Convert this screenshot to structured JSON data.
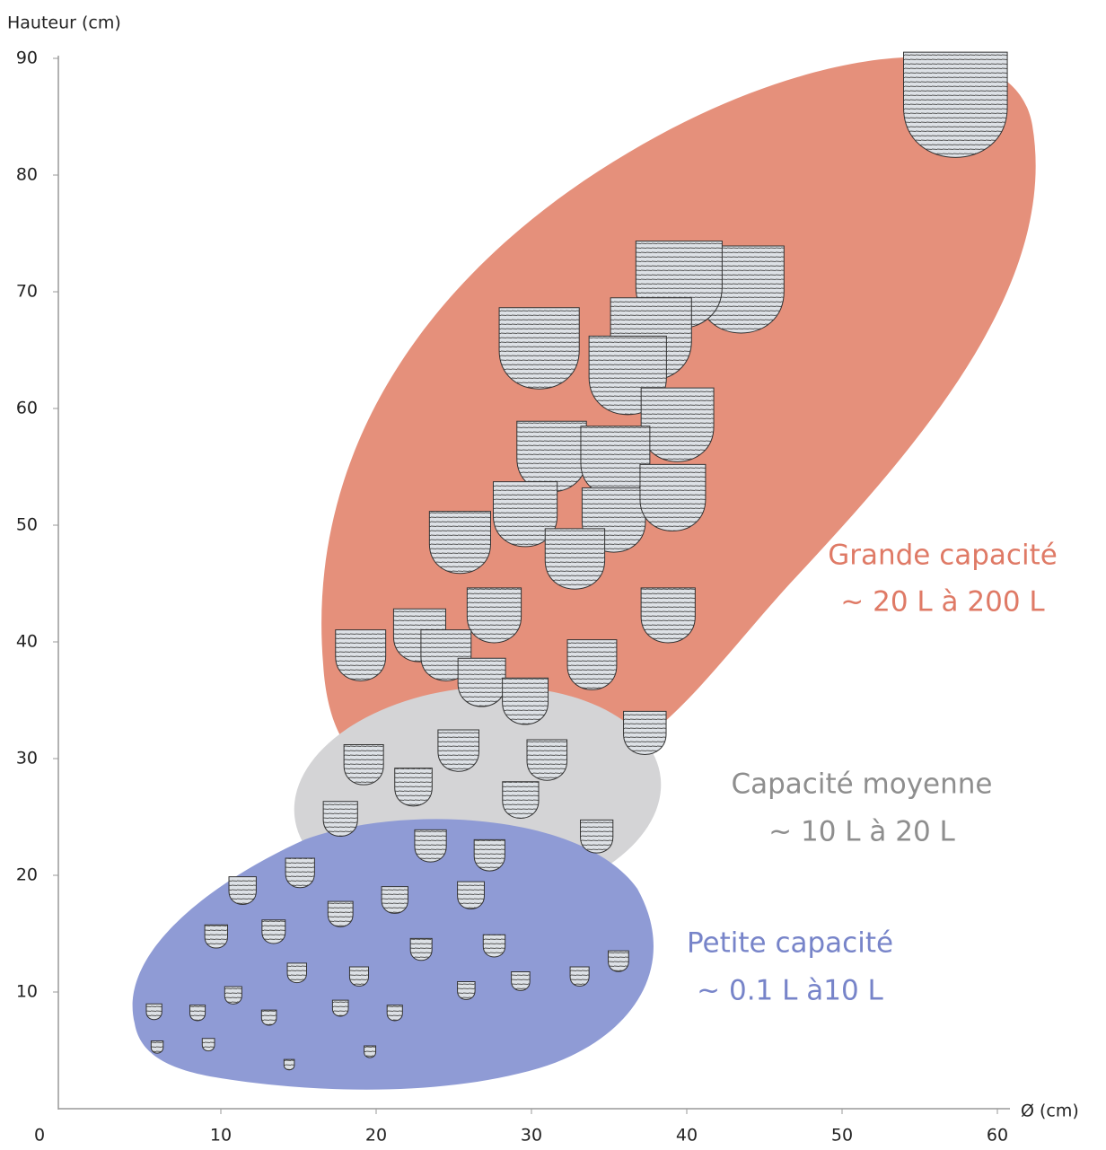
{
  "chart_data": {
    "type": "scatter",
    "xlabel": "Ø (cm)",
    "ylabel": "Hauteur (cm)",
    "xlim": [
      0,
      60
    ],
    "ylim": [
      0,
      90
    ],
    "xticks": [
      0,
      10,
      20,
      30,
      40,
      50,
      60
    ],
    "yticks": [
      10,
      20,
      30,
      40,
      50,
      60,
      70,
      80,
      90
    ],
    "x": [
      57.3,
      43.5,
      39.5,
      30.5,
      37.7,
      36.2,
      39.4,
      31.3,
      35.4,
      29.6,
      25.4,
      35.3,
      39.1,
      32.8,
      38.8,
      27.6,
      22.8,
      19.0,
      33.9,
      24.5,
      26.8,
      29.6,
      37.3,
      19.2,
      25.3,
      31.0,
      22.4,
      29.3,
      17.7,
      34.2,
      23.5,
      27.3,
      15.1,
      11.4,
      26.1,
      21.2,
      17.7,
      13.4,
      9.7,
      27.6,
      35.6,
      22.9,
      33.1,
      29.3,
      25.8,
      18.9,
      14.9,
      10.8,
      8.5,
      13.1,
      17.7,
      21.2,
      5.7,
      5.9,
      9.2,
      19.6,
      14.4
    ],
    "values": [
      85.3,
      69.6,
      70.0,
      64.6,
      65.4,
      62.3,
      58.1,
      55.4,
      55.0,
      50.5,
      48.1,
      50.0,
      51.9,
      46.7,
      41.9,
      41.9,
      40.2,
      38.5,
      37.7,
      38.5,
      36.2,
      34.6,
      31.9,
      29.2,
      30.4,
      29.6,
      27.3,
      26.2,
      24.6,
      23.1,
      22.3,
      21.5,
      20.0,
      18.5,
      18.1,
      17.7,
      16.5,
      15.0,
      14.6,
      13.8,
      12.5,
      13.5,
      11.2,
      10.8,
      10.0,
      11.2,
      11.5,
      9.6,
      8.1,
      7.7,
      8.5,
      8.1,
      8.2,
      5.2,
      5.4,
      4.8,
      3.7
    ],
    "annotations": [
      {
        "lines": [
          "Grande capacité",
          "~ 20 L à 200 L"
        ],
        "color": "#df7a66"
      },
      {
        "lines": [
          "Capacité moyenne",
          "~ 10 L à 20 L"
        ],
        "color": "#8e8e8e"
      },
      {
        "lines": [
          "Petite capacité",
          "~ 0.1 L à10 L"
        ],
        "color": "#7784c9"
      }
    ]
  }
}
